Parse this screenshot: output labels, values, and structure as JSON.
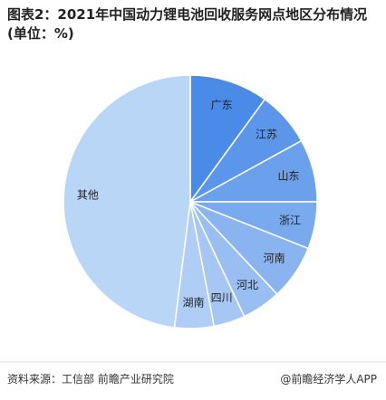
{
  "chart_data": {
    "type": "pie",
    "title": "图表2：2021年中国动力锂电池回收服务网点地区分布情况(单位：%)",
    "categories": [
      "广东",
      "江苏",
      "山东",
      "浙江",
      "河南",
      "河北",
      "四川",
      "湖南",
      "其他"
    ],
    "values": [
      10,
      7,
      8,
      6,
      7,
      5,
      4,
      5,
      48
    ],
    "colors": [
      "#4a8be8",
      "#5b96ea",
      "#6aa0ec",
      "#7aaaee",
      "#89b4f0",
      "#98bef2",
      "#a6c7f3",
      "#b0cdf5",
      "#bad6f7"
    ],
    "source": "资料来源：工信部 前瞻产业研究院",
    "brand": "@前瞻经济学人APP"
  }
}
